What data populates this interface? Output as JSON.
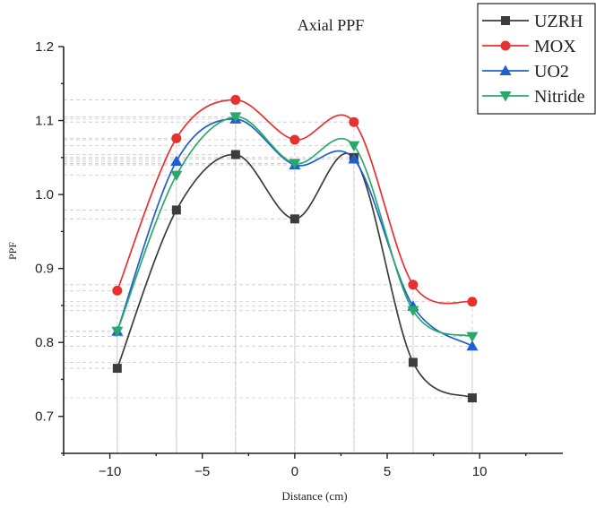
{
  "chart_data": {
    "type": "line",
    "title": "Axial PPF",
    "xlabel": "Distance (cm)",
    "ylabel": "PPF",
    "xlim": [
      -12.5,
      14.5
    ],
    "ylim": [
      0.65,
      1.2
    ],
    "xticks": [
      -10,
      -5,
      0,
      5,
      10
    ],
    "xtick_labels": [
      "−10",
      "−5",
      "0",
      "5",
      "10"
    ],
    "yticks": [
      0.7,
      0.8,
      0.9,
      1.0,
      1.1,
      1.2
    ],
    "ytick_labels": [
      "0.7",
      "0.8",
      "0.9",
      "1.0",
      "1.1",
      "1.2"
    ],
    "x": [
      -9.6,
      -6.4,
      -3.2,
      0,
      3.2,
      6.4,
      9.6
    ],
    "grid": false,
    "legend_position": "top-right",
    "series": [
      {
        "name": "UZRH",
        "marker": "square",
        "color": "#3c3c3c",
        "values": [
          0.765,
          0.979,
          1.054,
          0.967,
          1.05,
          0.773,
          0.725
        ]
      },
      {
        "name": "MOX",
        "marker": "circle",
        "color": "#e8302f",
        "values": [
          0.87,
          1.076,
          1.128,
          1.074,
          1.098,
          0.878,
          0.855
        ]
      },
      {
        "name": "UO2",
        "marker": "triangle-up",
        "color": "#1f5fd0",
        "values": [
          0.815,
          1.045,
          1.102,
          1.04,
          1.048,
          0.849,
          0.795
        ]
      },
      {
        "name": "Nitride",
        "marker": "triangle-down",
        "color": "#2aa86a",
        "values": [
          0.815,
          1.026,
          1.105,
          1.042,
          1.066,
          0.843,
          0.808
        ]
      }
    ]
  }
}
